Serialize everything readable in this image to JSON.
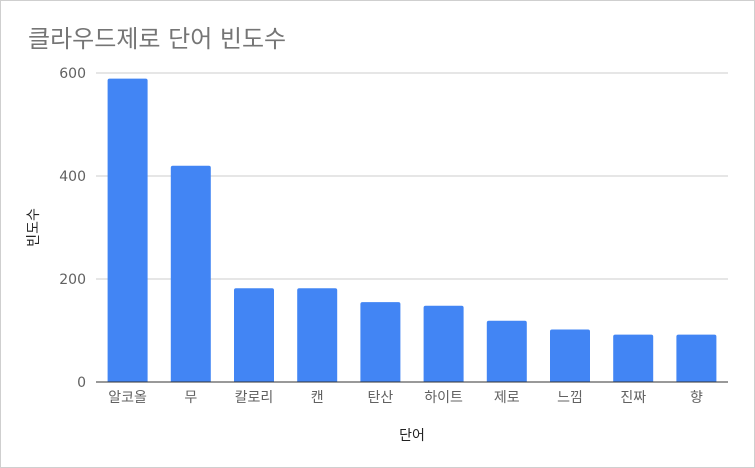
{
  "chart_data": {
    "type": "bar",
    "title": "클라우드제로 단어 빈도수",
    "xlabel": "단어",
    "ylabel": "빈도수",
    "categories": [
      "알코올",
      "무",
      "칼로리",
      "캔",
      "탄산",
      "하이트",
      "제로",
      "느낌",
      "진짜",
      "향"
    ],
    "values": [
      589,
      420,
      182,
      182,
      155,
      148,
      119,
      102,
      92,
      92
    ],
    "ylim": [
      0,
      600
    ],
    "yticks": [
      0,
      200,
      400,
      600
    ],
    "bar_color": "#4285f4",
    "grid": true,
    "legend": "none"
  }
}
